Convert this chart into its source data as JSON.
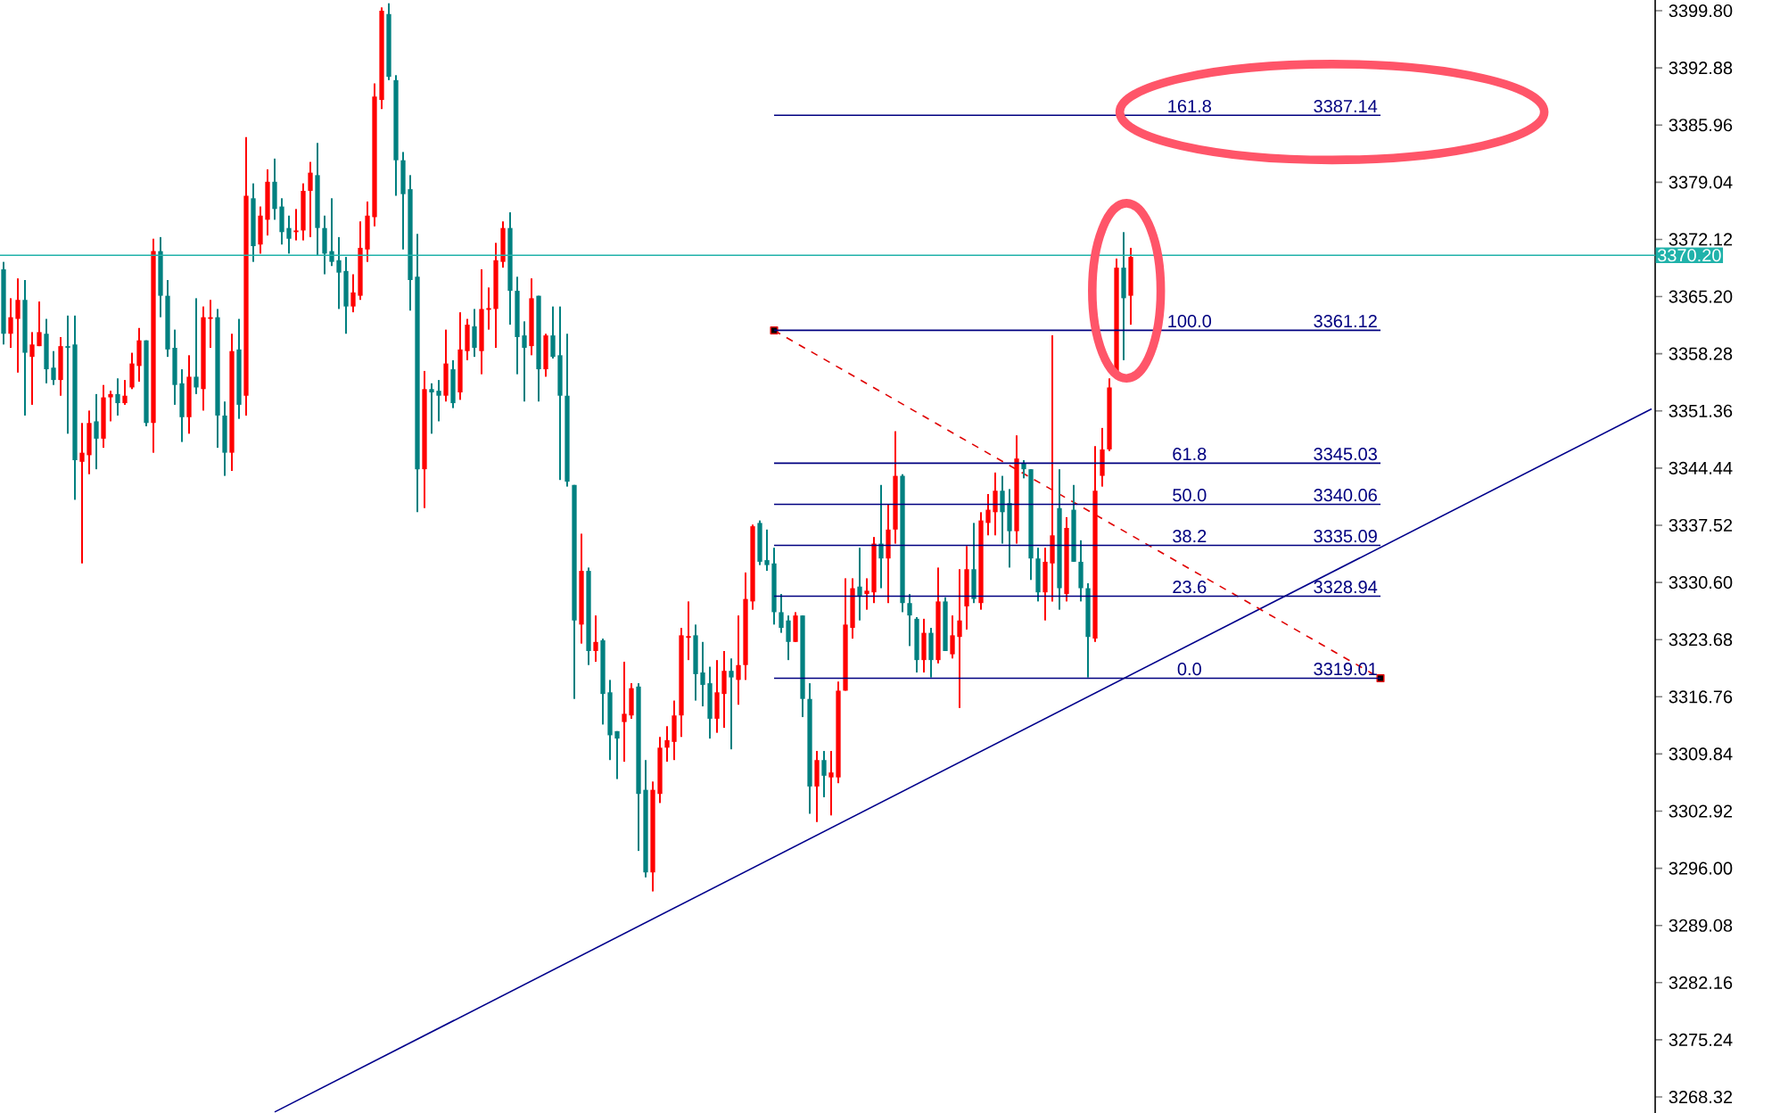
{
  "chart_data": {
    "type": "candlestick",
    "categories": [
      null,
      null,
      null,
      null,
      null,
      null,
      null,
      null,
      null,
      null,
      null,
      null,
      null,
      null,
      null,
      null,
      null,
      null,
      null,
      null,
      null,
      null,
      null,
      null,
      null,
      null,
      null,
      null,
      null,
      null,
      null,
      null,
      null,
      null,
      null,
      null,
      null,
      null,
      null,
      null,
      null,
      null,
      null,
      null,
      null,
      null,
      null,
      null,
      null,
      null,
      null,
      null,
      null,
      null,
      null,
      null,
      null,
      null,
      null,
      null,
      null,
      null,
      null,
      null,
      null,
      null,
      null,
      null,
      null,
      null,
      null,
      null,
      null,
      null,
      null,
      null,
      null,
      null,
      null,
      null,
      null,
      null,
      null,
      null,
      null,
      null,
      null,
      null,
      null,
      null,
      null,
      null,
      null,
      null,
      null,
      null,
      null,
      null,
      null,
      null,
      null,
      null,
      null,
      null,
      null,
      null,
      null,
      null,
      null,
      null,
      null,
      null,
      null,
      null,
      null,
      null,
      null,
      null,
      null,
      null,
      null,
      null,
      null,
      null,
      null,
      null,
      null,
      null,
      null,
      null,
      null,
      null,
      null,
      null,
      null,
      null,
      null,
      null,
      null,
      null,
      null,
      null,
      null,
      null,
      null,
      null,
      null,
      null,
      null,
      null,
      null,
      null,
      null,
      null,
      null,
      null,
      null,
      null,
      null,
      null,
      null,
      null,
      null,
      null,
      null,
      null,
      null,
      null,
      null,
      null,
      null,
      null,
      null,
      null,
      null,
      null,
      null,
      null,
      null,
      null,
      null,
      null,
      null,
      null,
      null,
      null,
      null,
      null,
      null,
      null,
      null,
      null,
      null,
      null,
      null,
      null,
      null,
      null,
      null,
      null,
      null,
      null,
      null,
      null,
      null,
      null,
      null,
      null,
      null,
      null,
      null,
      null,
      null,
      null,
      null,
      null,
      null,
      null,
      null,
      null,
      null,
      null,
      null,
      null,
      null,
      null,
      null,
      null,
      null,
      null,
      null,
      null
    ],
    "ohlc": [
      [
        3368.5,
        3369.4,
        3359.4,
        3360.7
      ],
      [
        3360.7,
        3365.0,
        3359.0,
        3362.7
      ],
      [
        3362.5,
        3367.4,
        3356.0,
        3364.8
      ],
      [
        3364.8,
        3367.2,
        3350.8,
        3358.4
      ],
      [
        3357.9,
        3360.9,
        3352.1,
        3359.4
      ],
      [
        3359.2,
        3364.6,
        3359.2,
        3360.9
      ],
      [
        3360.7,
        3362.5,
        3354.7,
        3356.4
      ],
      [
        3356.6,
        3358.6,
        3354.5,
        3355.1
      ],
      [
        3355.1,
        3360.3,
        3353.2,
        3359.2
      ],
      [
        3359.2,
        3362.9,
        3348.6,
        3359.0
      ],
      [
        3359.4,
        3362.9,
        3340.6,
        3345.4
      ],
      [
        3345.2,
        3349.9,
        3332.9,
        3346.3
      ],
      [
        3346.0,
        3351.4,
        3343.7,
        3349.9
      ],
      [
        3350.1,
        3353.4,
        3344.3,
        3348.0
      ],
      [
        3348.0,
        3354.5,
        3346.9,
        3353.0
      ],
      [
        3353.0,
        3353.8,
        3350.1,
        3353.4
      ],
      [
        3353.4,
        3355.3,
        3350.8,
        3352.3
      ],
      [
        3352.3,
        3355.1,
        3352.1,
        3353.2
      ],
      [
        3354.2,
        3358.4,
        3354.0,
        3357.1
      ],
      [
        3356.8,
        3361.4,
        3354.9,
        3359.9
      ],
      [
        3359.9,
        3359.9,
        3349.5,
        3349.9
      ],
      [
        3349.9,
        3372.2,
        3346.3,
        3370.7
      ],
      [
        3370.7,
        3372.4,
        3362.7,
        3365.3
      ],
      [
        3365.3,
        3367.2,
        3357.9,
        3358.8
      ],
      [
        3359.0,
        3361.2,
        3352.1,
        3354.5
      ],
      [
        3354.7,
        3356.4,
        3347.6,
        3350.6
      ],
      [
        3350.6,
        3358.1,
        3348.6,
        3355.5
      ],
      [
        3355.5,
        3365.0,
        3353.4,
        3354.2
      ],
      [
        3354.0,
        3364.0,
        3351.4,
        3362.7
      ],
      [
        3362.5,
        3364.8,
        3359.0,
        3362.7
      ],
      [
        3362.7,
        3363.7,
        3346.9,
        3350.8
      ],
      [
        3350.8,
        3352.5,
        3343.5,
        3346.3
      ],
      [
        3346.3,
        3360.7,
        3344.1,
        3358.6
      ],
      [
        3358.8,
        3362.5,
        3350.4,
        3352.1
      ],
      [
        3353.2,
        3384.5,
        3350.8,
        3377.4
      ],
      [
        3377.1,
        3378.9,
        3369.4,
        3371.3
      ],
      [
        3371.5,
        3376.1,
        3370.4,
        3375.0
      ],
      [
        3374.5,
        3380.6,
        3372.6,
        3379.1
      ],
      [
        3379.1,
        3381.9,
        3374.5,
        3375.8
      ],
      [
        3376.1,
        3377.1,
        3371.5,
        3373.0
      ],
      [
        3373.5,
        3375.0,
        3370.4,
        3372.2
      ],
      [
        3373.0,
        3375.8,
        3372.0,
        3373.2
      ],
      [
        3373.2,
        3378.9,
        3372.0,
        3378.0
      ],
      [
        3378.0,
        3381.5,
        3372.4,
        3380.2
      ],
      [
        3379.9,
        3383.8,
        3370.2,
        3373.5
      ],
      [
        3373.5,
        3375.0,
        3367.9,
        3370.4
      ],
      [
        3370.7,
        3377.1,
        3368.9,
        3369.4
      ],
      [
        3369.6,
        3372.4,
        3363.7,
        3368.1
      ],
      [
        3368.3,
        3370.0,
        3360.7,
        3364.0
      ],
      [
        3364.0,
        3367.9,
        3363.3,
        3365.7
      ],
      [
        3365.3,
        3374.3,
        3364.8,
        3371.1
      ],
      [
        3370.9,
        3376.7,
        3369.4,
        3375.0
      ],
      [
        3374.8,
        3391.0,
        3373.7,
        3389.4
      ],
      [
        3389.0,
        3400.2,
        3387.9,
        3399.8
      ],
      [
        3399.4,
        3400.7,
        3391.4,
        3391.8
      ],
      [
        3391.4,
        3392.0,
        3377.4,
        3381.7
      ],
      [
        3381.7,
        3382.7,
        3370.9,
        3377.6
      ],
      [
        3378.2,
        3379.9,
        3363.5,
        3367.2
      ],
      [
        3367.6,
        3372.8,
        3339.1,
        3344.3
      ],
      [
        3344.3,
        3356.2,
        3339.6,
        3354.0
      ],
      [
        3354.0,
        3354.7,
        3348.6,
        3353.6
      ],
      [
        3353.8,
        3355.1,
        3350.1,
        3353.2
      ],
      [
        3353.2,
        3361.2,
        3352.5,
        3357.1
      ],
      [
        3356.4,
        3357.5,
        3351.7,
        3352.3
      ],
      [
        3353.6,
        3363.3,
        3352.7,
        3358.8
      ],
      [
        3358.6,
        3362.5,
        3357.5,
        3361.8
      ],
      [
        3361.6,
        3363.7,
        3357.9,
        3359.0
      ],
      [
        3358.6,
        3368.5,
        3355.8,
        3363.7
      ],
      [
        3363.7,
        3366.3,
        3361.2,
        3363.7
      ],
      [
        3363.7,
        3371.7,
        3359.0,
        3369.6
      ],
      [
        3369.4,
        3374.3,
        3368.7,
        3373.5
      ],
      [
        3373.5,
        3375.4,
        3361.8,
        3365.9
      ],
      [
        3365.9,
        3367.6,
        3355.8,
        3360.3
      ],
      [
        3360.5,
        3362.2,
        3352.5,
        3359.0
      ],
      [
        3359.2,
        3367.4,
        3358.1,
        3365.0
      ],
      [
        3365.3,
        3365.3,
        3352.5,
        3356.4
      ],
      [
        3356.4,
        3360.7,
        3355.5,
        3360.5
      ],
      [
        3360.5,
        3364.0,
        3357.7,
        3357.9
      ],
      [
        3358.1,
        3364.0,
        3343.0,
        3353.2
      ],
      [
        3353.2,
        3360.7,
        3342.2,
        3342.8
      ],
      [
        3342.4,
        3342.4,
        3316.5,
        3326.0
      ],
      [
        3325.5,
        3336.5,
        3323.2,
        3332.0
      ],
      [
        3332.0,
        3332.4,
        3320.6,
        3322.3
      ],
      [
        3322.3,
        3326.6,
        3321.0,
        3323.4
      ],
      [
        3323.6,
        3323.8,
        3313.4,
        3317.1
      ],
      [
        3317.3,
        3318.8,
        3309.1,
        3312.1
      ],
      [
        3312.6,
        3312.6,
        3306.8,
        3311.7
      ],
      [
        3313.7,
        3321.0,
        3308.9,
        3314.7
      ],
      [
        3314.5,
        3318.4,
        3314.1,
        3317.8
      ],
      [
        3318.0,
        3318.4,
        3298.1,
        3305.0
      ],
      [
        3305.5,
        3309.1,
        3294.9,
        3295.5
      ],
      [
        3295.5,
        3306.5,
        3293.2,
        3305.5
      ],
      [
        3305.0,
        3311.9,
        3303.9,
        3310.6
      ],
      [
        3310.6,
        3313.2,
        3308.9,
        3311.5
      ],
      [
        3311.3,
        3316.3,
        3309.1,
        3314.5
      ],
      [
        3314.5,
        3325.1,
        3311.9,
        3324.2
      ],
      [
        3324.0,
        3328.3,
        3321.2,
        3324.0
      ],
      [
        3324.2,
        3325.5,
        3316.3,
        3319.5
      ],
      [
        3319.7,
        3323.4,
        3315.6,
        3318.2
      ],
      [
        3318.4,
        3320.4,
        3311.7,
        3314.1
      ],
      [
        3314.1,
        3321.2,
        3312.4,
        3317.3
      ],
      [
        3317.1,
        3322.3,
        3313.0,
        3319.9
      ],
      [
        3319.9,
        3321.4,
        3310.4,
        3319.1
      ],
      [
        3318.8,
        3326.6,
        3315.8,
        3320.6
      ],
      [
        3320.6,
        3331.8,
        3318.8,
        3328.6
      ],
      [
        3328.3,
        3337.6,
        3327.3,
        3337.4
      ],
      [
        3337.8,
        3338.1,
        3332.7,
        3333.1
      ],
      [
        3333.3,
        3337.0,
        3332.0,
        3332.7
      ],
      [
        3332.9,
        3334.8,
        3325.5,
        3327.0
      ],
      [
        3327.0,
        3329.2,
        3324.5,
        3325.1
      ],
      [
        3326.0,
        3326.6,
        3321.2,
        3323.4
      ],
      [
        3323.4,
        3327.0,
        3323.4,
        3326.6
      ],
      [
        3326.6,
        3326.6,
        3314.3,
        3316.5
      ],
      [
        3316.5,
        3318.4,
        3302.6,
        3305.9
      ],
      [
        3305.9,
        3310.2,
        3301.6,
        3309.1
      ],
      [
        3309.1,
        3310.2,
        3304.6,
        3307.2
      ],
      [
        3307.0,
        3310.2,
        3302.4,
        3307.6
      ],
      [
        3307.0,
        3318.6,
        3306.3,
        3317.5
      ],
      [
        3317.5,
        3331.1,
        3317.5,
        3325.5
      ],
      [
        3325.1,
        3331.1,
        3323.8,
        3329.9
      ],
      [
        3330.1,
        3334.8,
        3326.0,
        3329.0
      ],
      [
        3329.2,
        3331.1,
        3327.3,
        3329.6
      ],
      [
        3329.4,
        3336.1,
        3328.1,
        3335.3
      ],
      [
        3335.3,
        3342.4,
        3329.9,
        3333.5
      ],
      [
        3333.5,
        3340.0,
        3328.1,
        3337.0
      ],
      [
        3337.0,
        3348.9,
        3335.3,
        3343.5
      ],
      [
        3343.5,
        3343.7,
        3327.0,
        3328.1
      ],
      [
        3328.1,
        3329.2,
        3322.9,
        3326.6
      ],
      [
        3326.2,
        3326.4,
        3319.7,
        3321.2
      ],
      [
        3321.2,
        3326.2,
        3319.7,
        3324.5
      ],
      [
        3324.5,
        3325.1,
        3319.1,
        3321.2
      ],
      [
        3321.2,
        3332.4,
        3320.8,
        3328.3
      ],
      [
        3328.3,
        3328.8,
        3322.3,
        3322.3
      ],
      [
        3321.9,
        3326.6,
        3321.4,
        3324.2
      ],
      [
        3324.0,
        3332.2,
        3315.4,
        3326.0
      ],
      [
        3327.7,
        3335.0,
        3324.9,
        3332.2
      ],
      [
        3332.2,
        3337.8,
        3328.1,
        3328.6
      ],
      [
        3328.1,
        3339.1,
        3327.3,
        3338.1
      ],
      [
        3337.8,
        3341.3,
        3336.3,
        3339.4
      ],
      [
        3339.1,
        3343.9,
        3336.3,
        3341.7
      ],
      [
        3341.7,
        3343.5,
        3335.3,
        3339.1
      ],
      [
        3340.2,
        3341.9,
        3332.4,
        3336.8
      ],
      [
        3336.8,
        3348.4,
        3335.3,
        3345.6
      ],
      [
        3345.0,
        3345.4,
        3343.2,
        3344.3
      ],
      [
        3344.3,
        3344.3,
        3330.9,
        3333.5
      ],
      [
        3333.5,
        3334.8,
        3328.3,
        3329.4
      ],
      [
        3329.4,
        3334.8,
        3326.0,
        3333.1
      ],
      [
        3332.9,
        3360.5,
        3328.3,
        3336.3
      ],
      [
        3339.6,
        3344.3,
        3327.3,
        3329.9
      ],
      [
        3329.2,
        3338.5,
        3328.3,
        3337.2
      ],
      [
        3339.4,
        3342.4,
        3333.1,
        3333.1
      ],
      [
        3333.1,
        3335.7,
        3328.3,
        3329.9
      ],
      [
        3329.9,
        3330.5,
        3319.1,
        3324.0
      ],
      [
        3323.8,
        3347.1,
        3323.4,
        3341.7
      ],
      [
        3343.5,
        3349.3,
        3342.2,
        3346.7
      ],
      [
        3346.7,
        3355.3,
        3346.5,
        3354.2
      ],
      [
        3356.2,
        3369.8,
        3355.8,
        3368.7
      ],
      [
        3368.7,
        3373.0,
        3357.5,
        3365.0
      ],
      [
        3365.3,
        3371.1,
        3361.8,
        3370.0
      ],
      null,
      null,
      null,
      null,
      null,
      null,
      null,
      null,
      null,
      null,
      null,
      null,
      null,
      null,
      null,
      null,
      null,
      null,
      null,
      null,
      null,
      null,
      null,
      null,
      null,
      null,
      null,
      null,
      null,
      null,
      null,
      null,
      null,
      null,
      null,
      null,
      null,
      null,
      null,
      null,
      null,
      null,
      null,
      null,
      null,
      null,
      null,
      null,
      null,
      null,
      null,
      null,
      null,
      null,
      null,
      null,
      null,
      null,
      null,
      null,
      null,
      null,
      null,
      null,
      null,
      null,
      null,
      null,
      null,
      null,
      null,
      null,
      null
    ],
    "series": [
      {
        "type": "line",
        "color": "#00008b",
        "line_style": "solid",
        "marker": "none",
        "values": [
          null,
          null,
          null,
          null,
          null,
          null,
          null,
          null,
          null,
          null,
          null,
          null,
          null,
          null,
          null,
          null,
          null,
          null,
          null,
          null,
          null,
          null,
          null,
          null,
          null,
          null,
          null,
          null,
          null,
          null,
          null,
          null,
          null,
          null,
          null,
          null,
          null,
          null,
          3266.5,
          null,
          null,
          null,
          null,
          null,
          null,
          null,
          null,
          null,
          null,
          null,
          null,
          null,
          null,
          null,
          null,
          null,
          null,
          null,
          null,
          null,
          null,
          null,
          null,
          null,
          null,
          null,
          null,
          null,
          null,
          null,
          null,
          null,
          null,
          null,
          null,
          null,
          null,
          null,
          null,
          null,
          null,
          null,
          null,
          null,
          null,
          null,
          null,
          null,
          null,
          null,
          null,
          null,
          null,
          null,
          null,
          null,
          null,
          null,
          null,
          null,
          null,
          null,
          null,
          null,
          null,
          null,
          null,
          null,
          null,
          null,
          null,
          null,
          null,
          null,
          null,
          null,
          null,
          null,
          null,
          null,
          null,
          null,
          null,
          null,
          null,
          null,
          null,
          null,
          null,
          null,
          null,
          null,
          null,
          null,
          null,
          null,
          null,
          null,
          null,
          null,
          null,
          null,
          null,
          null,
          null,
          null,
          null,
          null,
          null,
          null,
          null,
          null,
          null,
          null,
          null,
          null,
          null,
          null,
          null,
          null,
          null,
          null,
          null,
          null,
          null,
          null,
          null,
          null,
          null,
          null,
          null,
          null,
          null,
          null,
          null,
          null,
          null,
          null,
          null,
          null,
          null,
          null,
          null,
          null,
          null,
          null,
          null,
          null,
          null,
          null,
          null,
          null,
          null,
          null,
          null,
          null,
          null,
          null,
          null,
          null,
          null,
          null,
          null,
          null,
          null,
          null,
          null,
          null,
          null,
          null,
          null,
          null,
          null,
          null,
          null,
          null,
          null,
          null,
          null,
          null,
          null,
          null,
          null,
          null,
          null,
          null,
          null,
          null,
          null,
          null,
          null,
          3351.6
        ]
      },
      {
        "type": "line",
        "color": "#e00000",
        "line_style": "dashed",
        "marker": "square",
        "values": [
          null,
          null,
          null,
          null,
          null,
          null,
          null,
          null,
          null,
          null,
          null,
          null,
          null,
          null,
          null,
          null,
          null,
          null,
          null,
          null,
          null,
          null,
          null,
          null,
          null,
          null,
          null,
          null,
          null,
          null,
          null,
          null,
          null,
          null,
          null,
          null,
          null,
          null,
          null,
          null,
          null,
          null,
          null,
          null,
          null,
          null,
          null,
          null,
          null,
          null,
          null,
          null,
          null,
          null,
          null,
          null,
          null,
          null,
          null,
          null,
          null,
          null,
          null,
          null,
          null,
          null,
          null,
          null,
          null,
          null,
          null,
          null,
          null,
          null,
          null,
          null,
          null,
          null,
          null,
          null,
          null,
          null,
          null,
          null,
          null,
          null,
          null,
          null,
          null,
          null,
          null,
          null,
          null,
          null,
          null,
          null,
          null,
          null,
          null,
          null,
          null,
          null,
          null,
          null,
          null,
          null,
          null,
          null,
          3361.1,
          null,
          null,
          null,
          null,
          null,
          null,
          null,
          null,
          null,
          null,
          null,
          null,
          null,
          null,
          null,
          null,
          null,
          null,
          null,
          null,
          null,
          null,
          null,
          null,
          null,
          null,
          null,
          null,
          null,
          null,
          null,
          null,
          null,
          null,
          null,
          null,
          null,
          null,
          null,
          null,
          null,
          null,
          null,
          null,
          null,
          null,
          null,
          null,
          null,
          null,
          null,
          null,
          null,
          null,
          null,
          null,
          null,
          null,
          null,
          null,
          null,
          null,
          null,
          null,
          null,
          null,
          null,
          null,
          null,
          null,
          null,
          null,
          null,
          null,
          null,
          null,
          null,
          null,
          null,
          null,
          null,
          null,
          null,
          null,
          3319.0,
          null,
          null,
          null,
          null,
          null,
          null,
          null,
          null,
          null,
          null,
          null,
          null,
          null,
          null,
          null,
          null,
          null,
          null,
          null,
          null,
          null,
          null,
          null,
          null,
          null,
          null,
          null,
          null,
          null,
          null,
          null,
          null,
          null,
          null,
          null,
          null,
          null,
          null
        ]
      }
    ],
    "ref_lines": [
      {
        "axis": "y",
        "value": 3370.2,
        "label": "3370.20",
        "color": "#20b2aa"
      },
      {
        "axis": "y",
        "value": 3387.14,
        "label": "3387.14",
        "color": "#000080"
      },
      {
        "axis": "y",
        "value": 3361.12,
        "label": "3361.12",
        "color": "#000080"
      },
      {
        "axis": "y",
        "value": 3345.03,
        "label": "3345.03",
        "color": "#000080"
      },
      {
        "axis": "y",
        "value": 3340.06,
        "label": "3340.06",
        "color": "#000080"
      },
      {
        "axis": "y",
        "value": 3335.09,
        "label": "3335.09",
        "color": "#000080"
      },
      {
        "axis": "y",
        "value": 3328.94,
        "label": "3328.94",
        "color": "#000080"
      },
      {
        "axis": "y",
        "value": 3319.01,
        "label": "3319.01",
        "color": "#000080"
      }
    ],
    "annotations": [
      {
        "text": "161.8",
        "y": 3387.14
      },
      {
        "text": "100.0",
        "y": 3361.12
      },
      {
        "text": "61.8",
        "y": 3345.03
      },
      {
        "text": "50.0",
        "y": 3340.06
      },
      {
        "text": "38.2",
        "y": 3335.09
      },
      {
        "text": "23.6",
        "y": 3328.94
      },
      {
        "text": "0.0",
        "y": 3319.01
      }
    ],
    "ylim": [
      3266.38,
      3401.1
    ],
    "yticks": [
      {
        "value": 3399.8,
        "label": "3399.80"
      },
      {
        "value": 3392.88,
        "label": "3392.88"
      },
      {
        "value": 3385.96,
        "label": "3385.96"
      },
      {
        "value": 3379.04,
        "label": "3379.04"
      },
      {
        "value": 3372.12,
        "label": "3372.12"
      },
      {
        "value": 3365.2,
        "label": "3365.20"
      },
      {
        "value": 3358.28,
        "label": "3358.28"
      },
      {
        "value": 3351.36,
        "label": "3351.36"
      },
      {
        "value": 3344.44,
        "label": "3344.44"
      },
      {
        "value": 3337.52,
        "label": "3337.52"
      },
      {
        "value": 3330.6,
        "label": "3330.60"
      },
      {
        "value": 3323.68,
        "label": "3323.68"
      },
      {
        "value": 3316.76,
        "label": "3316.76"
      },
      {
        "value": 3309.84,
        "label": "3309.84"
      },
      {
        "value": 3302.92,
        "label": "3302.92"
      },
      {
        "value": 3296,
        "label": "3296.00"
      },
      {
        "value": 3289.08,
        "label": "3289.08"
      },
      {
        "value": 3282.16,
        "label": "3282.16"
      },
      {
        "value": 3275.24,
        "label": "3275.24"
      },
      {
        "value": 3268.32,
        "label": "3268.32"
      }
    ],
    "tick_labels": "y"
  }
}
